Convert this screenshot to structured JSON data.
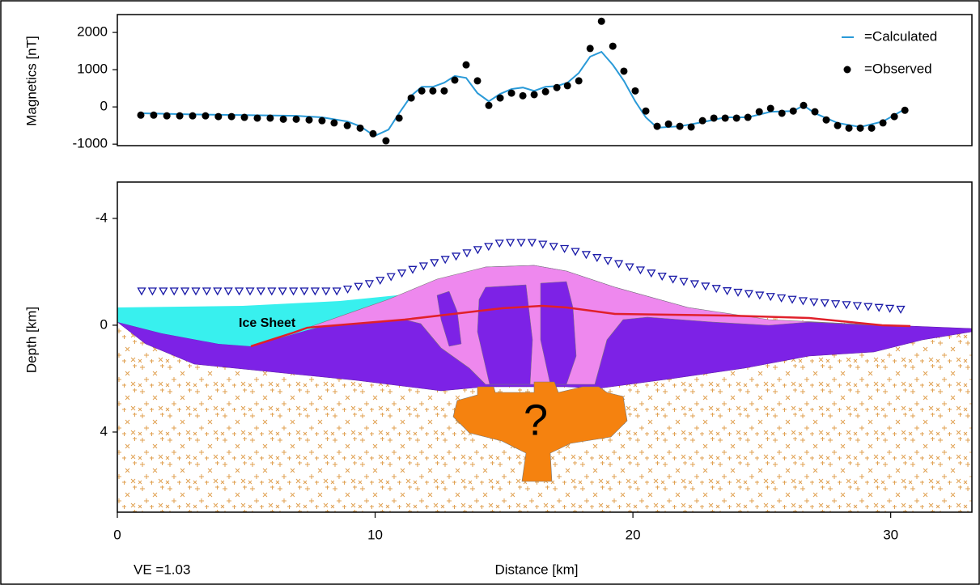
{
  "chart_data": [
    {
      "type": "line",
      "ylabel": "Magnetics [nT]",
      "xlim": [
        0,
        33.15
      ],
      "ylim": [
        -1040,
        2480
      ],
      "yticks": [
        2000,
        1000,
        0,
        -1000
      ],
      "legend": "upper right",
      "series": [
        {
          "name": "=Calculated",
          "color": "#2a9ad8",
          "style": "line",
          "x": [
            0.91,
            2.92,
            4.93,
            6.94,
            7.94,
            8.92,
            9.42,
            9.98,
            10.52,
            10.93,
            11.4,
            11.81,
            12.24,
            12.68,
            13.09,
            13.53,
            13.97,
            14.41,
            14.85,
            15.29,
            15.73,
            16.17,
            16.61,
            17.05,
            17.46,
            17.9,
            18.34,
            18.78,
            19.22,
            19.65,
            20.09,
            20.5,
            20.94,
            21.82,
            22.7,
            23.58,
            24.46,
            25.34,
            26.22,
            26.62,
            27.06,
            27.94,
            28.82,
            29.7,
            30.55
          ],
          "values": [
            -170,
            -200,
            -220,
            -240,
            -280,
            -390,
            -520,
            -780,
            -610,
            -170,
            300,
            540,
            540,
            650,
            830,
            780,
            370,
            150,
            350,
            480,
            520,
            430,
            540,
            560,
            650,
            910,
            1350,
            1480,
            1130,
            700,
            150,
            -280,
            -560,
            -520,
            -410,
            -280,
            -280,
            -130,
            -110,
            40,
            -170,
            -430,
            -540,
            -390,
            -60
          ]
        },
        {
          "name": "=Observed",
          "color": "#000000",
          "style": "markers",
          "x": [
            0.91,
            1.41,
            1.92,
            2.42,
            2.92,
            3.42,
            3.92,
            4.43,
            4.93,
            5.43,
            5.93,
            6.44,
            6.94,
            7.44,
            7.94,
            8.41,
            8.92,
            9.42,
            9.92,
            10.42,
            10.93,
            11.4,
            11.81,
            12.24,
            12.68,
            13.09,
            13.53,
            13.97,
            14.41,
            14.85,
            15.29,
            15.73,
            16.17,
            16.61,
            17.05,
            17.46,
            17.9,
            18.34,
            18.78,
            19.22,
            19.65,
            20.09,
            20.5,
            20.94,
            21.38,
            21.82,
            22.26,
            22.7,
            23.14,
            23.58,
            24.02,
            24.46,
            24.9,
            25.34,
            25.78,
            26.22,
            26.62,
            27.06,
            27.5,
            27.94,
            28.38,
            28.82,
            29.26,
            29.7,
            30.14,
            30.55
          ],
          "values": [
            -220,
            -220,
            -240,
            -240,
            -240,
            -240,
            -260,
            -260,
            -280,
            -300,
            -300,
            -330,
            -330,
            -350,
            -370,
            -430,
            -500,
            -570,
            -720,
            -910,
            -300,
            240,
            430,
            430,
            430,
            720,
            1130,
            700,
            40,
            240,
            370,
            300,
            330,
            410,
            520,
            570,
            700,
            1570,
            2300,
            1630,
            960,
            430,
            -110,
            -520,
            -460,
            -520,
            -540,
            -370,
            -300,
            -300,
            -300,
            -280,
            -130,
            -40,
            -170,
            -110,
            40,
            -130,
            -350,
            -500,
            -570,
            -570,
            -570,
            -430,
            -260,
            -90
          ]
        }
      ]
    },
    {
      "type": "section",
      "xlabel": "Distance [km]",
      "ylabel": "Depth [km]",
      "xlim": [
        0,
        33.15
      ],
      "xticks": [
        0,
        10,
        20,
        30
      ],
      "ylim": [
        7.0,
        -5.36
      ],
      "yticks": [
        -4,
        0,
        4
      ],
      "annotations": [
        "Ice Sheet",
        "?",
        "VE =1.03"
      ]
    }
  ]
}
